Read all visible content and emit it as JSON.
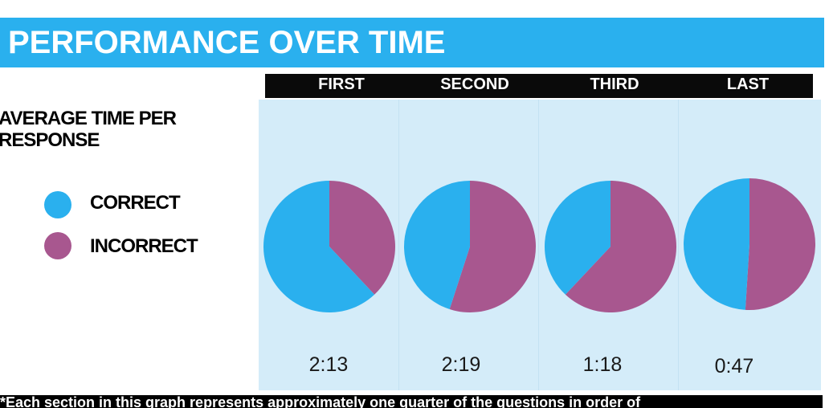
{
  "title": "PERFORMANCE OVER TIME",
  "ylabel": "AVERAGE TIME PER RESPONSE",
  "legend": [
    {
      "label": "CORRECT",
      "color": "#2ab0ee"
    },
    {
      "label": "INCORRECT",
      "color": "#a8578f"
    }
  ],
  "footnote": "*Each section in this graph represents approximately one quarter of the questions in order of",
  "chart_data": {
    "type": "pie",
    "categories": [
      "FIRST",
      "SECOND",
      "THIRD",
      "LAST"
    ],
    "series": [
      {
        "name": "CORRECT",
        "values": [
          62,
          45,
          38,
          49
        ]
      },
      {
        "name": "INCORRECT",
        "values": [
          38,
          55,
          62,
          51
        ]
      }
    ],
    "colors": {
      "CORRECT": "#2ab0ee",
      "INCORRECT": "#a8578f"
    },
    "time_labels": [
      "2:13",
      "2:19",
      "1:18",
      "0:47"
    ],
    "legend_position": "left"
  }
}
